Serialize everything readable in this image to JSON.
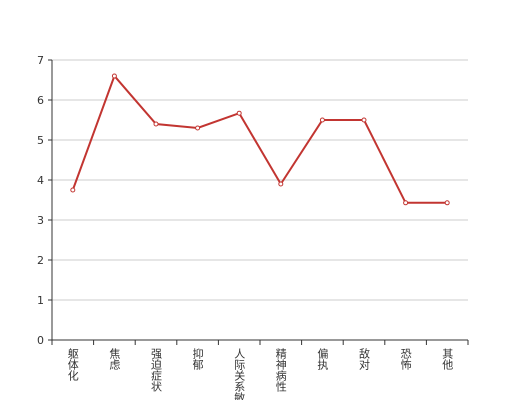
{
  "chart_data": {
    "type": "line",
    "categories": [
      "躯体化",
      "焦虑",
      "强迫症状",
      "抑郁",
      "人际关系敏感",
      "精神病性",
      "偏执",
      "敌对",
      "恐怖",
      "其他"
    ],
    "values": [
      3.75,
      6.6,
      5.4,
      5.3,
      5.67,
      3.9,
      5.5,
      5.5,
      3.43,
      3.43
    ],
    "color": "#c23531",
    "ylim": [
      0,
      7
    ],
    "yticks": [
      0,
      1,
      2,
      3,
      4,
      5,
      6,
      7
    ],
    "grid": true
  }
}
